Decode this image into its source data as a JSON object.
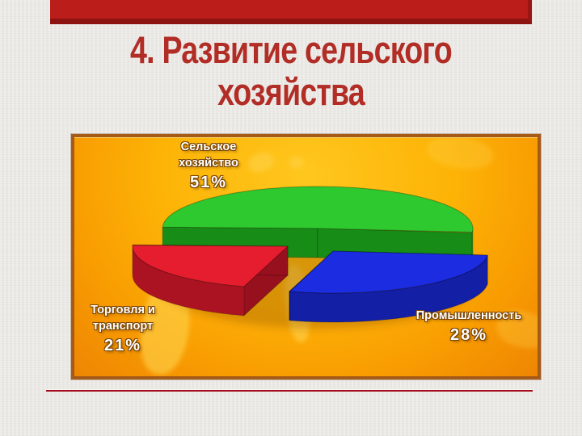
{
  "slide": {
    "title_line1": "4. Развитие сельского",
    "title_line2": "хозяйства",
    "title_color": "#b12d26",
    "accent_bar_color": "#bb1d1b",
    "accent_bar_edge_color": "#8c1310",
    "divider_color": "#a60d1d",
    "background_color": "#eae8e4"
  },
  "chart_data": {
    "type": "pie",
    "style": "3d-exploded",
    "title": "",
    "legend_position": "data-labels",
    "panel_background_color": "#fdb306",
    "panel_border_color": "#a55a17",
    "label_text_color": "#ffffff",
    "slices": [
      {
        "label": "Сельское хозяйство",
        "lines": [
          "Сельское",
          "хозяйство"
        ],
        "pct": "51%",
        "value": 51,
        "color_top": "#2ec92e",
        "color_side": "#1ea11e",
        "color_cut": "#178d17"
      },
      {
        "label": "Промышленность",
        "lines": [
          "Промышленность"
        ],
        "pct": "28%",
        "value": 28,
        "color_top": "#1c2ce0",
        "color_side": "#131fa4",
        "color_cut": "#0f1882"
      },
      {
        "label": "Торговля и транспорт",
        "lines": [
          "Торговля и",
          "транспорт"
        ],
        "pct": "21%",
        "value": 21,
        "color_top": "#e61d2e",
        "color_side": "#ab1322",
        "color_cut": "#96101d"
      }
    ]
  }
}
